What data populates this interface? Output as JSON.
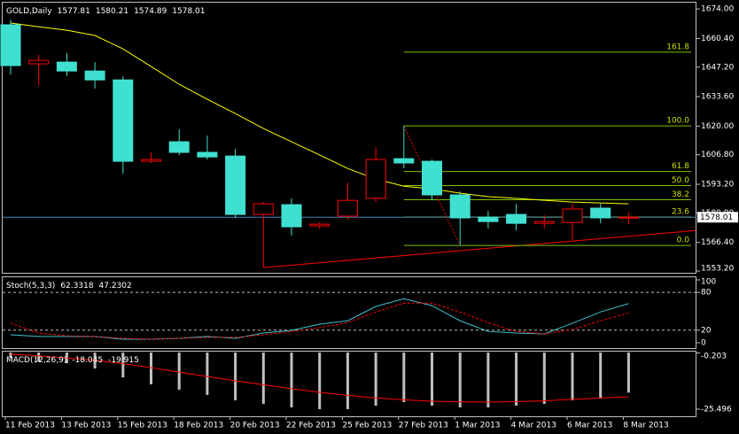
{
  "chart_data": [
    {
      "type": "candlestick",
      "title": "GOLD,Daily",
      "categories": [
        "11 Feb 2013",
        null,
        "13 Feb 2013",
        null,
        "15 Feb 2013",
        null,
        "18 Feb 2013",
        null,
        "20 Feb 2013",
        null,
        "22 Feb 2013",
        null,
        "25 Feb 2013",
        null,
        "27 Feb 2013",
        null,
        "1 Mar 2013",
        null,
        "4 Mar 2013",
        null,
        "6 Mar 2013",
        null,
        "8 Mar 2013"
      ],
      "open": [
        1666.7,
        1648.7,
        1649.5,
        1645.4,
        1641.3,
        1603.8,
        1612.8,
        1607.9,
        1606.2,
        1579.3,
        1583.8,
        1574.0,
        1578.5,
        1586.7,
        1605.0,
        1603.8,
        1588.3,
        1578.1,
        1579.3,
        1575.2,
        1575.6,
        1582.2,
        1577.81
      ],
      "high": [
        1669.0,
        1652.8,
        1653.6,
        1649.5,
        1643.0,
        1607.9,
        1618.5,
        1615.6,
        1609.5,
        1585.0,
        1586.7,
        1575.6,
        1594.0,
        1610.3,
        1620.1,
        1604.6,
        1589.9,
        1580.9,
        1584.2,
        1578.9,
        1584.2,
        1584.2,
        1580.21
      ],
      "low": [
        1643.8,
        1638.9,
        1643.0,
        1637.3,
        1598.1,
        1603.0,
        1606.7,
        1604.6,
        1577.7,
        1554.8,
        1569.5,
        1572.8,
        1576.9,
        1585.0,
        1600.5,
        1585.8,
        1565.0,
        1572.8,
        1572.0,
        1572.8,
        1567.5,
        1575.2,
        1574.89
      ],
      "close": [
        1647.9,
        1650.3,
        1645.4,
        1641.3,
        1603.8,
        1604.6,
        1607.9,
        1605.8,
        1579.3,
        1584.2,
        1573.6,
        1574.8,
        1585.8,
        1604.6,
        1603.0,
        1588.3,
        1577.7,
        1576.0,
        1575.2,
        1576.0,
        1581.8,
        1577.7,
        1578.01
      ],
      "up_color": "#ff0000",
      "down_color": "#40e0d0",
      "bid_color": "#4682b4",
      "ma": {
        "color": "#ffff00",
        "values": [
          1667.5,
          1665.8,
          1664.2,
          1661.8,
          1655.6,
          1647.5,
          1639.3,
          1632.4,
          1625.8,
          1618.9,
          1612.8,
          1606.7,
          1600.5,
          1595.6,
          1592.3,
          1591.1,
          1589.1,
          1587.5,
          1586.7,
          1585.8,
          1585.0,
          1584.6,
          1584.2
        ]
      },
      "fib": {
        "color": "#80c000",
        "label_color": "#c8e000",
        "start": 14,
        "anchor": {
          "from": [
            14,
            1620.1
          ],
          "to": [
            16,
            1565.0
          ],
          "color": "#ff0000"
        },
        "levels": [
          {
            "label": "161.8",
            "price": 1654.1
          },
          {
            "label": "100.0",
            "price": 1620.1
          },
          {
            "label": "61.8",
            "price": 1599.1
          },
          {
            "label": "50.0",
            "price": 1592.6
          },
          {
            "label": "38.2",
            "price": 1586.1
          },
          {
            "label": "23.6",
            "price": 1578.1
          },
          {
            "label": "0.0",
            "price": 1565.0
          }
        ]
      },
      "trendline": {
        "color": "#ff0000",
        "from": [
          9,
          1554.8
        ],
        "to": [
          24.4,
          1571.9
        ]
      },
      "ylim": [
        1552.4,
        1676.9
      ],
      "yticks": [
        {
          "value": 1674.0,
          "label": "1674.00"
        },
        {
          "value": 1660.4,
          "label": "1660.40"
        },
        {
          "value": 1647.2,
          "label": "1647.20"
        },
        {
          "value": 1633.6,
          "label": "1633.60"
        },
        {
          "value": 1620.0,
          "label": "1620.00"
        },
        {
          "value": 1606.8,
          "label": "1606.80"
        },
        {
          "value": 1593.2,
          "label": "1593.20"
        },
        {
          "value": 1580.0,
          "label": "1580.00"
        },
        {
          "value": 1566.4,
          "label": "1566.40"
        },
        {
          "value": 1553.2,
          "label": "1553.20"
        }
      ]
    },
    {
      "type": "stochastic",
      "title": "Stoch(5,3,3)",
      "series": [
        {
          "color": "#40c0d0",
          "values": [
            12.7,
            10,
            10,
            10,
            5.6,
            5.6,
            7,
            10,
            7,
            15.5,
            19.7,
            29.6,
            35,
            57.7,
            70,
            59,
            35,
            18,
            15.5,
            14,
            31,
            49,
            62.3318
          ]
        },
        {
          "color": "#ff0000",
          "dashed": true,
          "values": [
            31,
            15.5,
            11,
            10,
            7,
            5.6,
            7,
            8.5,
            8.5,
            12.7,
            18,
            24,
            32,
            49,
            63,
            63,
            49,
            32,
            18,
            14,
            21,
            35,
            47.2302
          ]
        }
      ],
      "levels": [
        20,
        80
      ],
      "ylim": [
        -8.5,
        104.2
      ],
      "yticks": [
        100,
        80,
        20,
        0
      ]
    },
    {
      "type": "macd",
      "title": "MACD(12,26,9)",
      "series": [
        {
          "color": "#c0c0c0",
          "values": [
            -2.4,
            -4,
            -4.8,
            -7.2,
            -11.2,
            -14.3,
            -16.7,
            -19.1,
            -21.5,
            -23.1,
            -24.7,
            -25.5,
            -25.5,
            -23.9,
            -22.3,
            -23.9,
            -24.7,
            -24.7,
            -23.9,
            -23.1,
            -21.5,
            -20.7,
            -18.045
          ]
        },
        {
          "color": "#ff0000",
          "values": [
            -0.8,
            -1.5,
            -2.5,
            -3.5,
            -5,
            -6.8,
            -8.8,
            -10.8,
            -12.7,
            -14.5,
            -16.3,
            -17.9,
            -19.3,
            -20.5,
            -21.3,
            -21.9,
            -22.2,
            -22.3,
            -22.1,
            -21.7,
            -21.1,
            -20.5,
            -19.915
          ]
        }
      ],
      "ylim": [
        -28.7,
        0.4
      ],
      "yticks": [
        -0.203,
        -25.496
      ]
    }
  ]
}
